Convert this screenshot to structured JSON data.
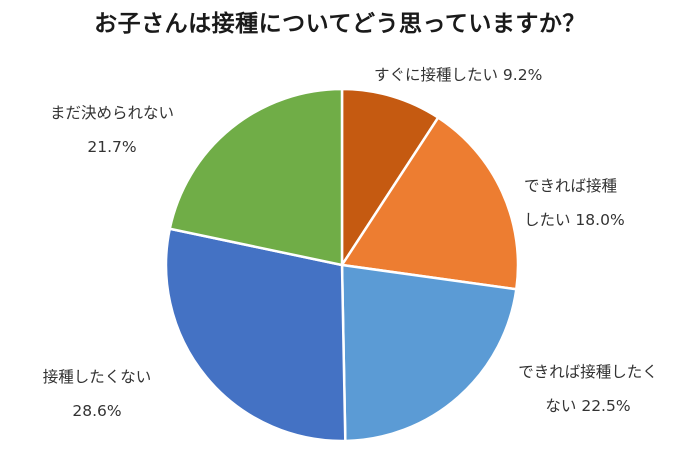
{
  "chart_data": {
    "type": "pie",
    "title": "お子さんは接種についてどう思っていますか？",
    "slices": [
      {
        "label_lines": [
          "すぐに接種したい 9.2%"
        ],
        "value": 9.2,
        "color": "#C55A11"
      },
      {
        "label_lines": [
          "できれば接種",
          "したい 18.0%"
        ],
        "value": 18.0,
        "color": "#ED7D31"
      },
      {
        "label_lines": [
          "できれば接種したく",
          "ない 22.5%"
        ],
        "value": 22.5,
        "color": "#5B9BD5"
      },
      {
        "label_lines": [
          "接種したくない",
          "28.6%"
        ],
        "value": 28.6,
        "color": "#4472C4"
      },
      {
        "label_lines": [
          "まだ決められない",
          "21.7%"
        ],
        "value": 21.7,
        "color": "#70AD47"
      }
    ],
    "start": "12 o'clock",
    "direction": "clockwise",
    "legend": "none"
  }
}
